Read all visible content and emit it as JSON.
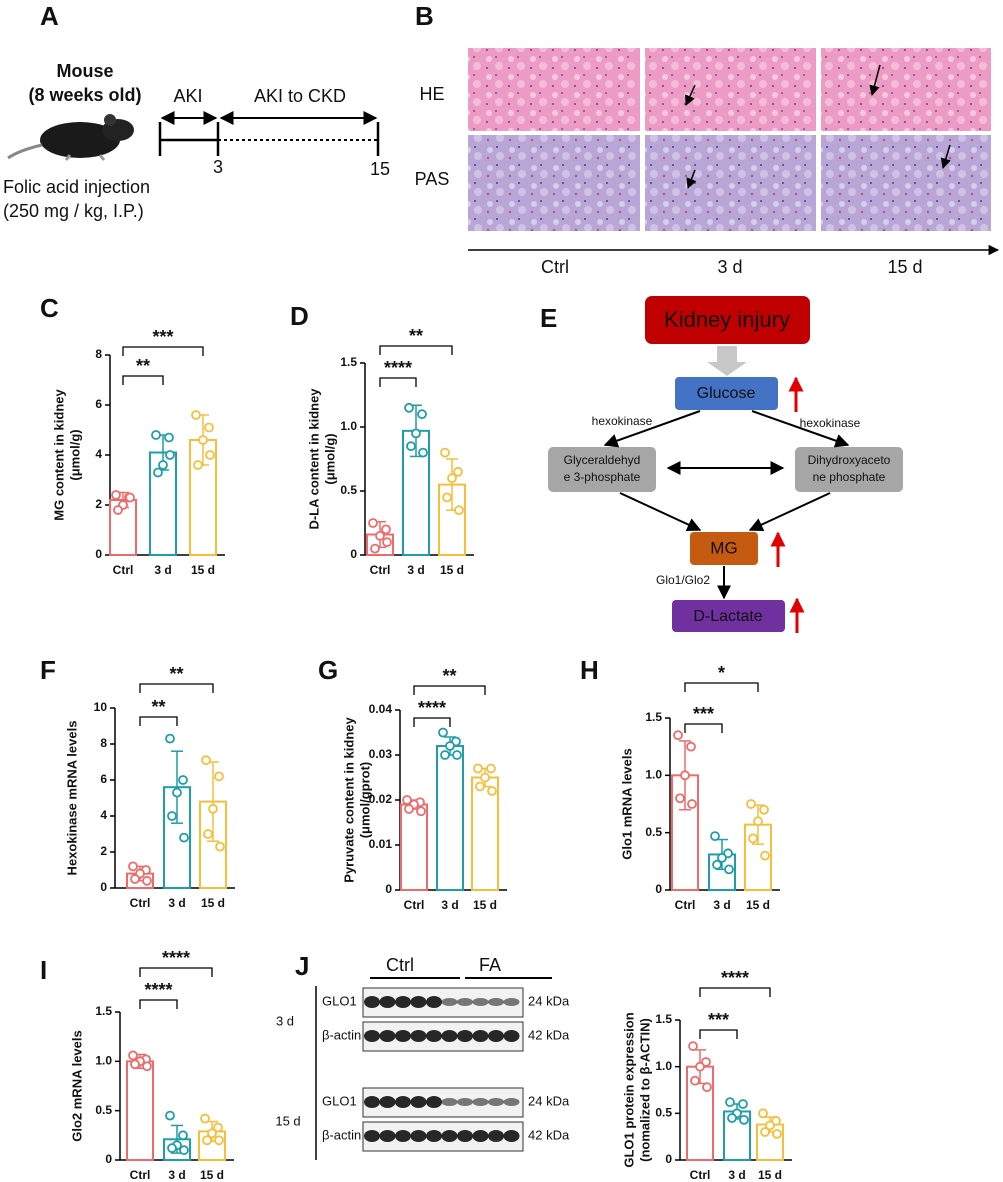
{
  "panel_labels": [
    "A",
    "B",
    "C",
    "D",
    "E",
    "F",
    "G",
    "H",
    "I",
    "J"
  ],
  "panel_a": {
    "title_lines": [
      "Mouse",
      "(8 weeks old)"
    ],
    "injection_lines": [
      "Folic acid injection",
      "(250 mg / kg, I.P.)"
    ],
    "phases": [
      "AKI",
      "AKI to CKD"
    ],
    "timepoints": [
      "3",
      "15"
    ]
  },
  "panel_b": {
    "rows": [
      "HE",
      "PAS"
    ],
    "columns": [
      "Ctrl",
      "3 d",
      "15 d"
    ]
  },
  "panel_e": {
    "nodes": [
      "Kidney injury",
      "Glucose",
      "Glyceraldehyd",
      "e 3-phosphate",
      "Dihydroxyaceto",
      "ne phosphate",
      "MG",
      "D-Lactate"
    ],
    "enzymes": [
      "hexokinase",
      "hexokinase",
      "Glo1/Glo2"
    ]
  },
  "panel_j_blot": {
    "groups": [
      "Ctrl",
      "FA"
    ],
    "timepoints": [
      "3 d",
      "15 d"
    ],
    "bands": [
      "GLO1",
      "β-actin"
    ],
    "sizes": [
      "24 kDa",
      "42 kDa"
    ]
  },
  "chart_data": [
    {
      "type": "bar",
      "ylabel": [
        "MG content in kidney",
        "(μmol/g)"
      ],
      "categories": [
        "Ctrl",
        "3 d",
        "15 d"
      ],
      "colors": [
        "#ee6b6b",
        "#1e9ea8",
        "#f5bf3c"
      ],
      "values": [
        2.2,
        4.1,
        4.6
      ],
      "errors": [
        0.3,
        0.7,
        1.0
      ],
      "points": [
        [
          2.4,
          2.3,
          2.0,
          1.8,
          2.3
        ],
        [
          4.8,
          4.7,
          3.6,
          3.3,
          4.0
        ],
        [
          5.6,
          5.1,
          4.6,
          3.6,
          4.0
        ]
      ],
      "ylim": [
        0,
        8
      ],
      "yticks": [
        0,
        2,
        4,
        6,
        8
      ],
      "comparisons": [
        {
          "label": "**",
          "from": "Ctrl",
          "to": "3 d"
        },
        {
          "label": "***",
          "from": "Ctrl",
          "to": "15 d"
        }
      ]
    },
    {
      "type": "bar",
      "ylabel": [
        "D-LA content in kidney",
        "(μmol/g)"
      ],
      "categories": [
        "Ctrl",
        "3 d",
        "15 d"
      ],
      "colors": [
        "#ee6b6b",
        "#1e9ea8",
        "#f5bf3c"
      ],
      "values": [
        0.16,
        0.97,
        0.55
      ],
      "errors": [
        0.1,
        0.2,
        0.2
      ],
      "points": [
        [
          0.25,
          0.2,
          0.15,
          0.05,
          0.1
        ],
        [
          1.15,
          1.1,
          0.95,
          0.85,
          0.8
        ],
        [
          0.8,
          0.65,
          0.6,
          0.45,
          0.35
        ]
      ],
      "ylim": [
        0,
        1.5
      ],
      "yticks": [
        0,
        0.5,
        {
          "value": 1,
          "label": "1.0"
        },
        1.5
      ],
      "comparisons": [
        {
          "label": "****",
          "from": "Ctrl",
          "to": "3 d"
        },
        {
          "label": "**",
          "from": "Ctrl",
          "to": "15 d"
        }
      ]
    },
    {
      "type": "bar",
      "ylabel": [
        "Hexokinase mRNA levels"
      ],
      "categories": [
        "Ctrl",
        "3 d",
        "15 d"
      ],
      "colors": [
        "#ee6b6b",
        "#1e9ea8",
        "#f5bf3c"
      ],
      "values": [
        0.8,
        5.6,
        4.8
      ],
      "errors": [
        0.4,
        2.0,
        2.2
      ],
      "points": [
        [
          1.2,
          1.0,
          0.8,
          0.5,
          0.4
        ],
        [
          8.3,
          6.0,
          5.3,
          4.0,
          2.8
        ],
        [
          7.1,
          6.2,
          4.4,
          3.0,
          2.3
        ]
      ],
      "ylim": [
        0,
        10
      ],
      "yticks": [
        0,
        2,
        4,
        6,
        8,
        10
      ],
      "comparisons": [
        {
          "label": "**",
          "from": "Ctrl",
          "to": "3 d"
        },
        {
          "label": "**",
          "from": "Ctrl",
          "to": "15 d"
        }
      ]
    },
    {
      "type": "bar",
      "ylabel": [
        "Pyruvate content in kidney",
        "(μmol/gprot)"
      ],
      "categories": [
        "Ctrl",
        "3 d",
        "15 d"
      ],
      "colors": [
        "#ee6b6b",
        "#1e9ea8",
        "#f5bf3c"
      ],
      "values": [
        0.019,
        0.032,
        0.025
      ],
      "errors": [
        0.001,
        0.002,
        0.002
      ],
      "points": [
        [
          0.02,
          0.0195,
          0.019,
          0.018,
          0.0175
        ],
        [
          0.035,
          0.033,
          0.032,
          0.03,
          0.03
        ],
        [
          0.027,
          0.027,
          0.025,
          0.023,
          0.022
        ]
      ],
      "ylim": [
        0,
        0.04
      ],
      "yticks": [
        0,
        0.01,
        0.02,
        0.03,
        0.04
      ],
      "comparisons": [
        {
          "label": "****",
          "from": "Ctrl",
          "to": "3 d"
        },
        {
          "label": "**",
          "from": "Ctrl",
          "to": "15 d"
        }
      ]
    },
    {
      "type": "bar",
      "ylabel": [
        "Glo1 mRNA levels"
      ],
      "categories": [
        "Ctrl",
        "3 d",
        "15 d"
      ],
      "colors": [
        "#ee6b6b",
        "#1e9ea8",
        "#f5bf3c"
      ],
      "values": [
        1.0,
        0.31,
        0.57
      ],
      "errors": [
        0.3,
        0.13,
        0.17
      ],
      "points": [
        [
          1.35,
          1.25,
          1.0,
          0.8,
          0.75
        ],
        [
          0.47,
          0.32,
          0.28,
          0.22,
          0.18
        ],
        [
          0.75,
          0.7,
          0.6,
          0.45,
          0.3
        ]
      ],
      "ylim": [
        0,
        1.5
      ],
      "yticks": [
        0,
        0.5,
        {
          "value": 1,
          "label": "1.0"
        },
        1.5
      ],
      "comparisons": [
        {
          "label": "***",
          "from": "Ctrl",
          "to": "3 d"
        },
        {
          "label": "*",
          "from": "Ctrl",
          "to": "15 d"
        }
      ]
    },
    {
      "type": "bar",
      "ylabel": [
        "Glo2  mRNA levels"
      ],
      "categories": [
        "Ctrl",
        "3 d",
        "15 d"
      ],
      "colors": [
        "#ee6b6b",
        "#1e9ea8",
        "#f5bf3c"
      ],
      "values": [
        1.0,
        0.21,
        0.29
      ],
      "errors": [
        0.07,
        0.14,
        0.1
      ],
      "points": [
        [
          1.06,
          1.02,
          1.0,
          0.97,
          0.95
        ],
        [
          0.45,
          0.25,
          0.15,
          0.12,
          0.1
        ],
        [
          0.42,
          0.33,
          0.27,
          0.2,
          0.2
        ]
      ],
      "ylim": [
        0,
        1.5
      ],
      "yticks": [
        0,
        0.5,
        {
          "value": 1,
          "label": "1.0"
        },
        1.5
      ],
      "comparisons": [
        {
          "label": "****",
          "from": "Ctrl",
          "to": "3 d"
        },
        {
          "label": "****",
          "from": "Ctrl",
          "to": "15 d"
        }
      ]
    },
    {
      "type": "bar",
      "ylabel": [
        "GLO1 protein expression",
        "(nomalized to β-ACTIN)"
      ],
      "categories": [
        "Ctrl",
        "3 d",
        "15 d"
      ],
      "colors": [
        "#ee6b6b",
        "#1e9ea8",
        "#f5bf3c"
      ],
      "values": [
        1.0,
        0.52,
        0.38
      ],
      "errors": [
        0.18,
        0.08,
        0.08
      ],
      "points": [
        [
          1.22,
          1.05,
          1.0,
          0.85,
          0.78
        ],
        [
          0.62,
          0.6,
          0.5,
          0.45,
          0.43
        ],
        [
          0.5,
          0.42,
          0.37,
          0.3,
          0.28
        ]
      ],
      "ylim": [
        0,
        1.5
      ],
      "yticks": [
        0,
        0.5,
        {
          "value": 1,
          "label": "1.0"
        },
        1.5
      ],
      "comparisons": [
        {
          "label": "***",
          "from": "Ctrl",
          "to": "3 d"
        },
        {
          "label": "****",
          "from": "Ctrl",
          "to": "15 d"
        }
      ]
    }
  ]
}
